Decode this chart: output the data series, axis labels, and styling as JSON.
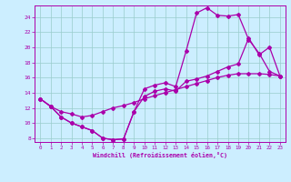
{
  "xlabel": "Windchill (Refroidissement éolien,°C)",
  "xlim": [
    -0.5,
    23.5
  ],
  "ylim": [
    7.5,
    25.5
  ],
  "xticks": [
    0,
    1,
    2,
    3,
    4,
    5,
    6,
    7,
    8,
    9,
    10,
    11,
    12,
    13,
    14,
    15,
    16,
    17,
    18,
    19,
    20,
    21,
    22,
    23
  ],
  "yticks": [
    8,
    10,
    12,
    14,
    16,
    18,
    20,
    22,
    24
  ],
  "bg_color": "#cceeff",
  "line_color": "#aa00aa",
  "grid_color": "#99cccc",
  "line1_x": [
    0,
    1,
    2,
    3,
    4,
    5,
    6,
    7,
    8,
    9,
    10,
    11,
    12,
    13,
    14,
    15,
    16,
    17,
    18,
    19,
    20,
    21,
    22,
    23
  ],
  "line1_y": [
    13.2,
    12.2,
    10.8,
    10.0,
    9.5,
    9.0,
    8.0,
    7.8,
    7.9,
    11.5,
    14.5,
    15.0,
    15.3,
    14.8,
    19.5,
    24.5,
    25.2,
    24.2,
    24.1,
    24.3,
    21.0,
    19.2,
    16.8,
    16.2
  ],
  "line2_x": [
    0,
    1,
    2,
    3,
    4,
    5,
    6,
    7,
    8,
    9,
    10,
    11,
    12,
    13,
    14,
    15,
    16,
    17,
    18,
    19,
    20,
    21,
    22,
    23
  ],
  "line2_y": [
    13.2,
    12.2,
    11.5,
    11.2,
    10.8,
    11.0,
    11.5,
    12.0,
    12.3,
    12.7,
    13.2,
    13.6,
    14.0,
    14.4,
    14.8,
    15.2,
    15.6,
    16.0,
    16.3,
    16.5,
    16.5,
    16.5,
    16.4,
    16.2
  ],
  "line3_x": [
    0,
    1,
    2,
    3,
    4,
    5,
    6,
    7,
    8,
    9,
    10,
    11,
    12,
    13,
    14,
    15,
    16,
    17,
    18,
    19,
    20,
    21,
    22,
    23
  ],
  "line3_y": [
    13.2,
    12.2,
    10.8,
    10.0,
    9.5,
    9.0,
    8.0,
    7.8,
    7.9,
    11.5,
    13.5,
    14.2,
    14.5,
    14.2,
    15.5,
    15.8,
    16.2,
    16.8,
    17.4,
    17.8,
    21.2,
    19.0,
    20.0,
    16.2
  ]
}
